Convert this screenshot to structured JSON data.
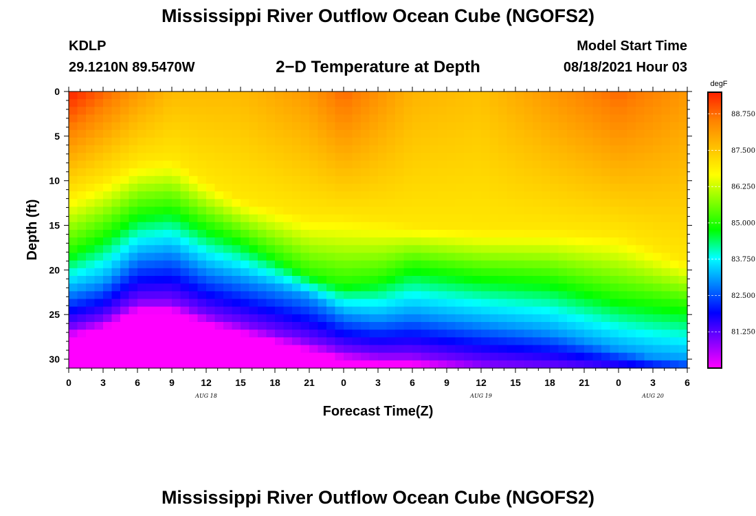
{
  "header": {
    "title": "Mississippi River Outflow Ocean Cube (NGOFS2)",
    "station": "KDLP",
    "coords": "29.1210N  89.5470W",
    "subtitle": "2−D Temperature at Depth",
    "model_label": "Model Start Time",
    "model_time": "08/18/2021 Hour 03"
  },
  "footer": {
    "title": "Mississippi River Outflow Ocean Cube (NGOFS2)"
  },
  "chart_data": {
    "type": "heatmap",
    "title": "2−D Temperature at Depth",
    "xlabel": "Forecast Time(Z)",
    "ylabel": "Depth (ft)",
    "x_range_hours": [
      0,
      54
    ],
    "y_range_ft": [
      0,
      31
    ],
    "y_inverted": true,
    "x_ticks": [
      {
        "hour": 0,
        "label": "0"
      },
      {
        "hour": 3,
        "label": "3"
      },
      {
        "hour": 6,
        "label": "6"
      },
      {
        "hour": 9,
        "label": "9"
      },
      {
        "hour": 12,
        "label": "12"
      },
      {
        "hour": 15,
        "label": "15"
      },
      {
        "hour": 18,
        "label": "18"
      },
      {
        "hour": 21,
        "label": "21"
      },
      {
        "hour": 24,
        "label": "0"
      },
      {
        "hour": 27,
        "label": "3"
      },
      {
        "hour": 30,
        "label": "6"
      },
      {
        "hour": 33,
        "label": "9"
      },
      {
        "hour": 36,
        "label": "12"
      },
      {
        "hour": 39,
        "label": "15"
      },
      {
        "hour": 42,
        "label": "18"
      },
      {
        "hour": 45,
        "label": "21"
      },
      {
        "hour": 48,
        "label": "0"
      },
      {
        "hour": 51,
        "label": "3"
      },
      {
        "hour": 54,
        "label": "6"
      }
    ],
    "date_labels": [
      {
        "hour": 12,
        "label": "AUG 18"
      },
      {
        "hour": 36,
        "label": "AUG 19"
      },
      {
        "hour": 51,
        "label": "AUG 20"
      }
    ],
    "y_ticks": [
      0,
      5,
      10,
      15,
      20,
      25,
      30
    ],
    "colorbar": {
      "unit": "degF",
      "min": 80.0,
      "max": 89.5,
      "tick_values": [
        81.25,
        82.5,
        83.75,
        85.0,
        86.25,
        87.5,
        88.75
      ],
      "tick_labels": [
        "81.250",
        "82.500",
        "83.750",
        "85.000",
        "86.250",
        "87.500",
        "88.750"
      ],
      "colormap": [
        "#ff00ff",
        "#8000ff",
        "#0000ff",
        "#0080ff",
        "#00ffff",
        "#00ff00",
        "#80ff00",
        "#ffff00",
        "#ffc000",
        "#ff8000",
        "#ff2000"
      ]
    },
    "surface_temp_degF": [
      {
        "hour": 0,
        "value": 89.5
      },
      {
        "hour": 6,
        "value": 88.2
      },
      {
        "hour": 9,
        "value": 87.7
      },
      {
        "hour": 15,
        "value": 87.7
      },
      {
        "hour": 21,
        "value": 88.2
      },
      {
        "hour": 24,
        "value": 88.8
      },
      {
        "hour": 30,
        "value": 87.8
      },
      {
        "hour": 36,
        "value": 87.6
      },
      {
        "hour": 42,
        "value": 88.2
      },
      {
        "hour": 48,
        "value": 88.8
      },
      {
        "hour": 54,
        "value": 88.2
      }
    ],
    "isotherm_depths_ft": [
      {
        "temp": 87.0,
        "points": [
          [
            0,
            11.5
          ],
          [
            3,
            10
          ],
          [
            6,
            8
          ],
          [
            9,
            7.5
          ],
          [
            12,
            10
          ],
          [
            15,
            12
          ],
          [
            18,
            13
          ],
          [
            21,
            14
          ],
          [
            24,
            14
          ],
          [
            27,
            14.5
          ],
          [
            30,
            15
          ],
          [
            36,
            15.5
          ],
          [
            42,
            15.5
          ],
          [
            48,
            16
          ],
          [
            54,
            19
          ]
        ]
      },
      {
        "temp": 85.0,
        "points": [
          [
            0,
            18
          ],
          [
            3,
            16
          ],
          [
            6,
            13.5
          ],
          [
            9,
            13
          ],
          [
            12,
            15
          ],
          [
            15,
            16.5
          ],
          [
            18,
            18.5
          ],
          [
            21,
            20.5
          ],
          [
            24,
            21.5
          ],
          [
            27,
            21
          ],
          [
            30,
            19.5
          ],
          [
            33,
            20
          ],
          [
            36,
            20.5
          ],
          [
            42,
            21
          ],
          [
            45,
            22
          ],
          [
            48,
            23
          ],
          [
            54,
            24
          ]
        ]
      },
      {
        "temp": 83.0,
        "points": [
          [
            0,
            22.5
          ],
          [
            3,
            21.5
          ],
          [
            6,
            18.5
          ],
          [
            9,
            18
          ],
          [
            12,
            20
          ],
          [
            15,
            21
          ],
          [
            18,
            22
          ],
          [
            21,
            23
          ],
          [
            24,
            25
          ],
          [
            27,
            25.5
          ],
          [
            30,
            25
          ],
          [
            36,
            26
          ],
          [
            42,
            27
          ],
          [
            45,
            28
          ],
          [
            48,
            29
          ],
          [
            51,
            29.8
          ],
          [
            54,
            30.2
          ]
        ]
      },
      {
        "temp": 81.0,
        "points": [
          [
            0,
            26.5
          ],
          [
            3,
            25.5
          ],
          [
            6,
            23.5
          ],
          [
            9,
            23.5
          ],
          [
            12,
            25
          ],
          [
            15,
            26
          ],
          [
            18,
            27
          ],
          [
            21,
            28
          ],
          [
            24,
            29
          ],
          [
            27,
            29.5
          ],
          [
            30,
            29.5
          ],
          [
            36,
            30.5
          ],
          [
            42,
            31
          ],
          [
            48,
            31.5
          ],
          [
            54,
            32
          ]
        ]
      }
    ]
  }
}
